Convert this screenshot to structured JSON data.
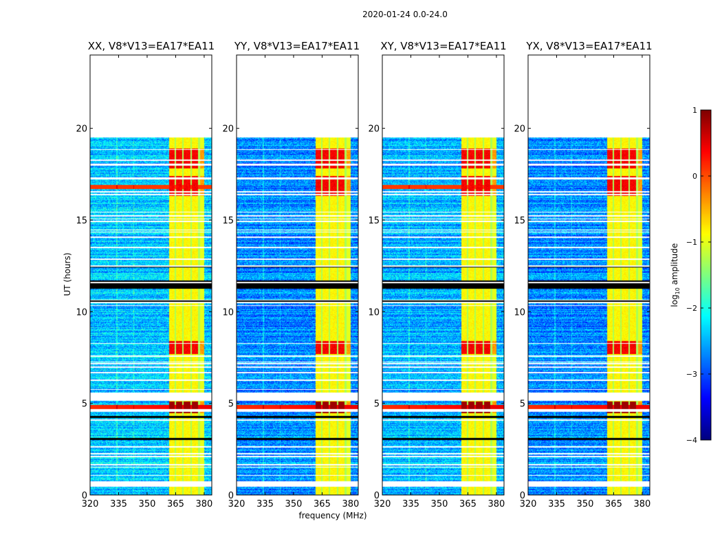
{
  "figure": {
    "suptitle": "2020-01-24 0.0-24.0",
    "xlabel": "frequency (MHz)",
    "ylabel": "UT (hours)",
    "colorbar_label_prefix": "log",
    "colorbar_label_sub": "10",
    "colorbar_label_suffix": " amplitude"
  },
  "chart_data": {
    "type": "heatmap",
    "colormap": "jet",
    "panels": [
      {
        "title": "XX, V8*V13=EA17*EA11",
        "pol": "XX",
        "base_level": -2.4,
        "red_band_16h": true
      },
      {
        "title": "YY, V8*V13=EA17*EA11",
        "pol": "YY",
        "base_level": -2.7,
        "red_band_16h": false
      },
      {
        "title": "XY, V8*V13=EA17*EA11",
        "pol": "XY",
        "base_level": -2.5,
        "red_band_16h": true
      },
      {
        "title": "YX, V8*V13=EA17*EA11",
        "pol": "YX",
        "base_level": -2.7,
        "red_band_16h": false
      }
    ],
    "xlim": [
      320,
      384
    ],
    "ylim": [
      0,
      24
    ],
    "xticks": [
      "320",
      "335",
      "350",
      "365",
      "380"
    ],
    "xtick_values": [
      320,
      335,
      350,
      365,
      380
    ],
    "yticks": [
      "0",
      "5",
      "10",
      "15",
      "20"
    ],
    "ytick_values": [
      0,
      5,
      10,
      15,
      20
    ],
    "data_time_range_hours": [
      0,
      19.5
    ],
    "rfi_band_mhz": [
      361.5,
      380
    ],
    "rfi_subband_gaps_mhz": [
      364.9,
      368.9,
      373.2,
      377.3
    ],
    "flagged_intervals_hours": [
      [
        0.45,
        0.75
      ],
      [
        5.15,
        5.6
      ],
      [
        19.5,
        24
      ]
    ],
    "black_rows_hours": [
      [
        11.25,
        11.7
      ],
      [
        3.0,
        3.12
      ],
      [
        4.2,
        4.3
      ],
      [
        12.4,
        12.5
      ],
      [
        10.5,
        10.6
      ]
    ],
    "strong_rfi_hours": [
      [
        4.45,
        5.1
      ],
      [
        16.3,
        17.4
      ],
      [
        7.7,
        8.4
      ],
      [
        17.8,
        18.9
      ]
    ],
    "broadband_red_band_hours": [
      [
        4.55,
        4.9
      ]
    ],
    "colorbar": {
      "range": [
        -4,
        1
      ],
      "ticks": [
        "1",
        "0",
        "−1",
        "−2",
        "−3",
        "−4"
      ],
      "tick_values": [
        1,
        0,
        -1,
        -2,
        -3,
        -4
      ]
    }
  }
}
